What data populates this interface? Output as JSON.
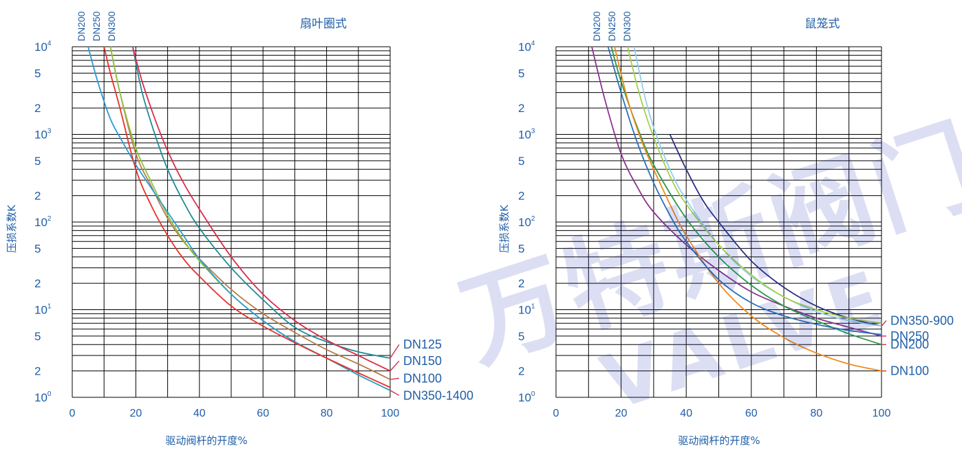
{
  "colors": {
    "axis_text": "#1f5ea8",
    "grid": "#000000",
    "watermark": "rgba(40,55,180,0.16)"
  },
  "watermark": {
    "cn_text": "万特斯阀门",
    "en_text": "VALVE"
  },
  "chart_data": [
    {
      "type": "line",
      "title": "扇叶圈式",
      "xlabel": "驱动阀杆的开度%",
      "ylabel": "压损系数K",
      "yscale": "log",
      "xlim": [
        0,
        100
      ],
      "ylim": [
        1,
        10000
      ],
      "x_ticks": [
        "0",
        "20",
        "40",
        "60",
        "80",
        "100"
      ],
      "y_ticks": [
        {
          "v": 1,
          "base": "10",
          "exp": "0"
        },
        {
          "v": 2,
          "base": "2",
          "exp": ""
        },
        {
          "v": 5,
          "base": "5",
          "exp": ""
        },
        {
          "v": 10,
          "base": "10",
          "exp": "1"
        },
        {
          "v": 20,
          "base": "2",
          "exp": ""
        },
        {
          "v": 50,
          "base": "5",
          "exp": ""
        },
        {
          "v": 100,
          "base": "10",
          "exp": "2"
        },
        {
          "v": 200,
          "base": "2",
          "exp": ""
        },
        {
          "v": 500,
          "base": "5",
          "exp": ""
        },
        {
          "v": 1000,
          "base": "10",
          "exp": "3"
        },
        {
          "v": 2000,
          "base": "2",
          "exp": ""
        },
        {
          "v": 5000,
          "base": "5",
          "exp": ""
        },
        {
          "v": 10000,
          "base": "10",
          "exp": "4"
        }
      ],
      "top_labels": [
        "DN200",
        "DN250",
        "DN300"
      ],
      "series": [
        {
          "name": "DN125",
          "color": "#1c8c96",
          "x": [
            19,
            22,
            26,
            30,
            35,
            40,
            50,
            60,
            70,
            80,
            90,
            100
          ],
          "y": [
            10000,
            3000,
            1000,
            400,
            170,
            85,
            30,
            13,
            6.3,
            4.3,
            3.3,
            2.8
          ]
        },
        {
          "name": "DN150",
          "color": "#dc2a4a",
          "x": [
            19,
            22,
            26,
            30,
            35,
            40,
            50,
            60,
            70,
            80,
            90,
            100
          ],
          "y": [
            10000,
            4000,
            1500,
            650,
            280,
            140,
            40,
            15,
            7.5,
            4.5,
            3.0,
            2.0
          ]
        },
        {
          "name": "DN100",
          "color": "#b97c4a",
          "x": [
            12,
            15,
            20,
            25,
            30,
            35,
            40,
            50,
            60,
            70,
            80,
            90,
            100
          ],
          "y": [
            10000,
            3000,
            600,
            250,
            110,
            60,
            38,
            17,
            9,
            5.5,
            3.5,
            2.4,
            1.6
          ]
        },
        {
          "name": "DN350-1400",
          "color": "#8cc63f",
          "x": [
            12,
            15,
            20,
            25,
            30,
            35,
            40,
            50,
            60,
            70,
            80,
            90,
            100
          ],
          "y": [
            10000,
            3000,
            700,
            280,
            120,
            62,
            36,
            15,
            7.5,
            4.3,
            2.8,
            1.8,
            1.2
          ]
        },
        {
          "name": "",
          "color": "#2a9bd6",
          "x": [
            5,
            8,
            12,
            16,
            20,
            25,
            30,
            35,
            40,
            50,
            60,
            70,
            80,
            90,
            100
          ],
          "y": [
            10000,
            4000,
            1500,
            800,
            450,
            240,
            130,
            70,
            38,
            15,
            7.5,
            4.3,
            2.8,
            1.8,
            1.2
          ]
        },
        {
          "name": "",
          "color": "#e8302a",
          "x": [
            10,
            12,
            15,
            20,
            25,
            30,
            35,
            40,
            50,
            60,
            70,
            80,
            90,
            100
          ],
          "y": [
            10000,
            5000,
            2000,
            400,
            150,
            70,
            38,
            24,
            11,
            6.5,
            4.2,
            2.8,
            1.9,
            1.3
          ]
        }
      ]
    },
    {
      "type": "line",
      "title": "鼠笼式",
      "xlabel": "驱动阀杆的开度%",
      "ylabel": "压损系数K",
      "yscale": "log",
      "xlim": [
        0,
        100
      ],
      "ylim": [
        1,
        10000
      ],
      "x_ticks": [
        "0",
        "20",
        "40",
        "60",
        "80",
        "100"
      ],
      "y_ticks": [
        {
          "v": 1,
          "base": "10",
          "exp": "0"
        },
        {
          "v": 2,
          "base": "2",
          "exp": ""
        },
        {
          "v": 5,
          "base": "5",
          "exp": ""
        },
        {
          "v": 10,
          "base": "10",
          "exp": "1"
        },
        {
          "v": 20,
          "base": "2",
          "exp": ""
        },
        {
          "v": 50,
          "base": "5",
          "exp": ""
        },
        {
          "v": 100,
          "base": "10",
          "exp": "2"
        },
        {
          "v": 200,
          "base": "2",
          "exp": ""
        },
        {
          "v": 500,
          "base": "5",
          "exp": ""
        },
        {
          "v": 1000,
          "base": "10",
          "exp": "3"
        },
        {
          "v": 2000,
          "base": "2",
          "exp": ""
        },
        {
          "v": 5000,
          "base": "5",
          "exp": ""
        },
        {
          "v": 10000,
          "base": "10",
          "exp": "4"
        }
      ],
      "top_labels": [
        "DN200",
        "DN250",
        "DN300"
      ],
      "series": [
        {
          "name": "DN350-900",
          "color": "#2c2f7e",
          "x": [
            35,
            40,
            45,
            50,
            60,
            70,
            80,
            90,
            100
          ],
          "y": [
            1000,
            400,
            180,
            100,
            36,
            18,
            11,
            8,
            6.5
          ]
        },
        {
          "name": "DN250",
          "color": "#8a3390",
          "x": [
            11,
            15,
            20,
            25,
            30,
            40,
            50,
            60,
            70,
            80,
            90,
            100
          ],
          "y": [
            10000,
            2500,
            600,
            250,
            130,
            55,
            28,
            16,
            11,
            8,
            6.3,
            5.0
          ]
        },
        {
          "name": "DN200",
          "color": "#2a9a4a",
          "x": [
            17,
            20,
            25,
            30,
            40,
            50,
            60,
            70,
            80,
            90,
            100
          ],
          "y": [
            10000,
            4000,
            1200,
            450,
            110,
            40,
            19,
            11,
            7.5,
            5.3,
            4.0
          ]
        },
        {
          "name": "DN100",
          "color": "#f08a1c",
          "x": [
            18,
            22,
            26,
            30,
            35,
            40,
            50,
            60,
            70,
            80,
            90,
            100
          ],
          "y": [
            10000,
            2500,
            900,
            400,
            160,
            70,
            20,
            8.5,
            4.8,
            3.2,
            2.4,
            2.0
          ]
        },
        {
          "name": "",
          "color": "#2a6fb5",
          "x": [
            16,
            20,
            25,
            30,
            35,
            40,
            50,
            60,
            70,
            80,
            90,
            100
          ],
          "y": [
            10000,
            3000,
            800,
            280,
            120,
            60,
            22,
            12,
            8.5,
            6.8,
            5.8,
            5.2
          ]
        },
        {
          "name": "",
          "color": "#8fd0ec",
          "x": [
            24,
            27,
            30,
            35,
            40,
            50,
            60,
            70,
            80,
            90,
            100
          ],
          "y": [
            10000,
            3000,
            1200,
            400,
            180,
            55,
            24,
            14,
            9.5,
            7.5,
            6.5
          ]
        },
        {
          "name": "",
          "color": "#a6cf4a",
          "x": [
            22,
            25,
            28,
            32,
            36,
            40,
            50,
            60,
            70,
            80,
            90,
            100
          ],
          "y": [
            10000,
            3500,
            1500,
            600,
            280,
            160,
            55,
            25,
            14,
            10,
            8,
            7
          ]
        }
      ]
    }
  ],
  "right_labels": [
    [
      {
        "text": "DN125",
        "color": "#1f5ea8",
        "y_value": 2.8,
        "label_value": 4.0
      },
      {
        "text": "DN150",
        "color": "#1f5ea8",
        "y_value": 2.0,
        "label_value": 2.6
      },
      {
        "text": "DN100",
        "color": "#1f5ea8",
        "y_value": 1.6,
        "label_value": 1.65
      },
      {
        "text": "DN350-1400",
        "color": "#1f5ea8",
        "y_value": 1.2,
        "label_value": 1.05
      }
    ],
    [
      {
        "text": "DN350-900",
        "color": "#1f5ea8",
        "y_value": 6.5,
        "label_value": 7.5
      },
      {
        "text": "DN250",
        "color": "#1f5ea8",
        "y_value": 5.0,
        "label_value": 5.0
      },
      {
        "text": "DN200",
        "color": "#1f5ea8",
        "y_value": 4.0,
        "label_value": 4.0
      },
      {
        "text": "DN100",
        "color": "#1f5ea8",
        "y_value": 2.0,
        "label_value": 2.0
      }
    ]
  ]
}
